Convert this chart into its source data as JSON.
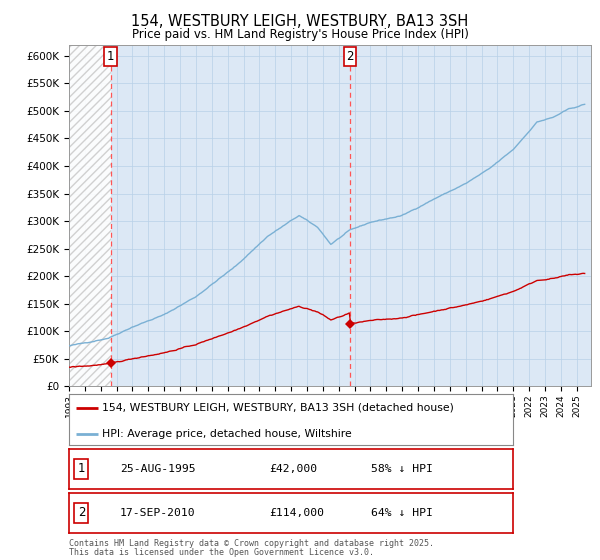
{
  "title": "154, WESTBURY LEIGH, WESTBURY, BA13 3SH",
  "subtitle": "Price paid vs. HM Land Registry's House Price Index (HPI)",
  "legend_property": "154, WESTBURY LEIGH, WESTBURY, BA13 3SH (detached house)",
  "legend_hpi": "HPI: Average price, detached house, Wiltshire",
  "sale1_date": "25-AUG-1995",
  "sale1_price": 42000,
  "sale1_year": 1995.625,
  "sale2_date": "17-SEP-2010",
  "sale2_price": 114000,
  "sale2_year": 2010.708,
  "sale1_hpi_pct": "58% ↓ HPI",
  "sale2_hpi_pct": "64% ↓ HPI",
  "footer_line1": "Contains HM Land Registry data © Crown copyright and database right 2025.",
  "footer_line2": "This data is licensed under the Open Government Licence v3.0.",
  "property_color": "#cc0000",
  "hpi_color": "#7ab0d4",
  "grid_color": "#b8d0e8",
  "hatch_color": "#cccccc",
  "bg_color": "#dce8f5",
  "sale_vline_color": "#ff5555",
  "ylim": [
    0,
    620000
  ],
  "yticks": [
    0,
    50000,
    100000,
    150000,
    200000,
    250000,
    300000,
    350000,
    400000,
    450000,
    500000,
    550000,
    600000
  ],
  "xlim_start": 1993.0,
  "xlim_end": 2025.9,
  "hpi_key_years": [
    1993.0,
    1994.0,
    1995.5,
    1997.0,
    1999.0,
    2001.0,
    2003.5,
    2005.5,
    2007.5,
    2008.7,
    2009.5,
    2010.7,
    2012.0,
    2014.0,
    2016.0,
    2018.0,
    2019.5,
    2021.0,
    2022.5,
    2023.5,
    2024.5,
    2025.5
  ],
  "hpi_key_values": [
    73000,
    79000,
    88000,
    108000,
    130000,
    163000,
    218000,
    272000,
    310000,
    288000,
    258000,
    283000,
    298000,
    310000,
    340000,
    368000,
    395000,
    430000,
    480000,
    488000,
    503000,
    512000
  ]
}
